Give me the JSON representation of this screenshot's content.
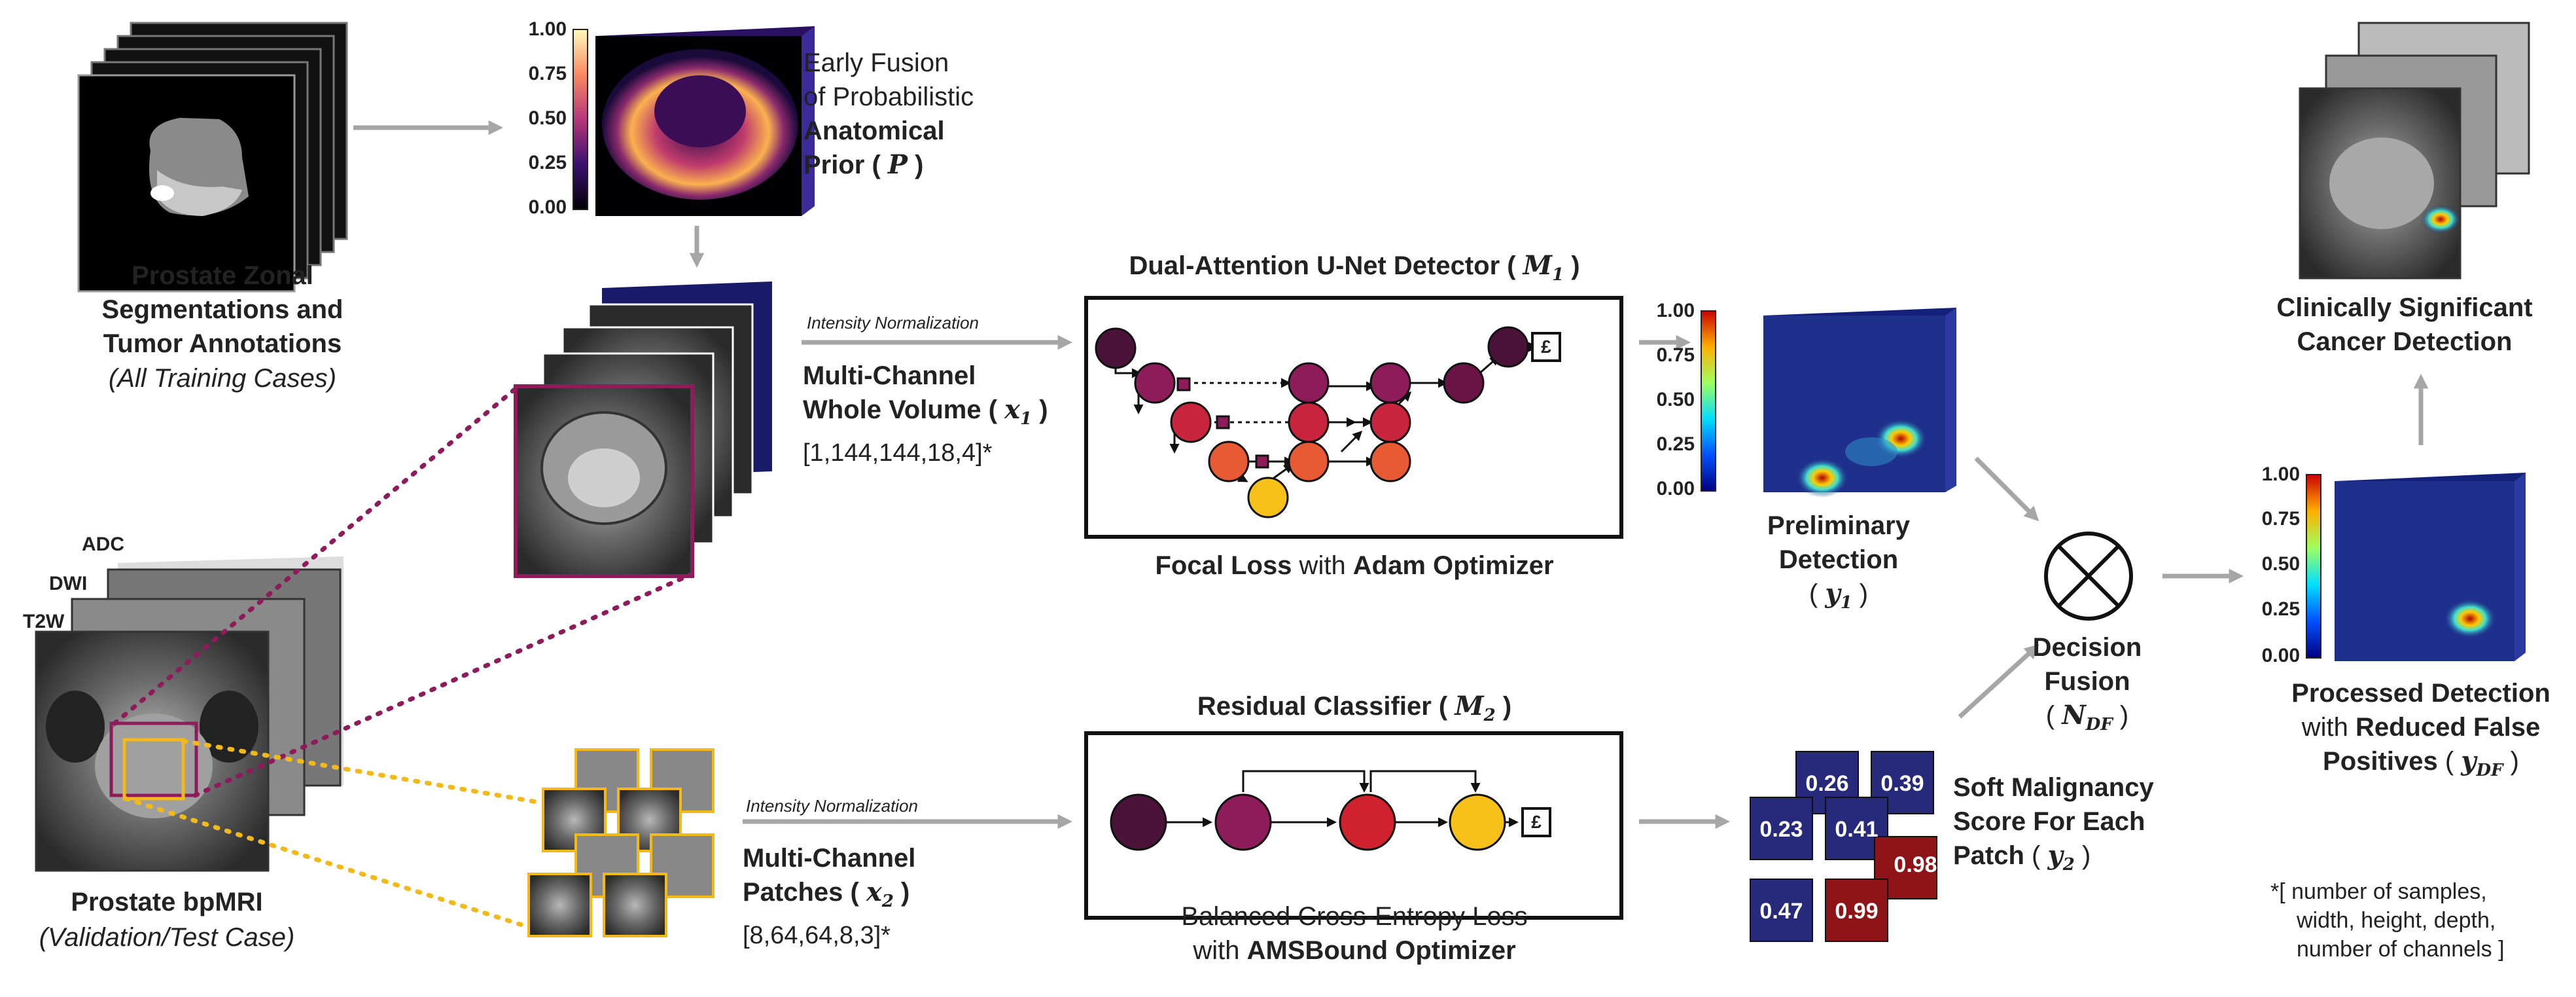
{
  "zonal": {
    "title_lines": [
      "Prostate Zonal",
      "Segmentations and",
      "Tumor Annotations"
    ],
    "subtitle": "(All Training Cases)"
  },
  "bpmri": {
    "title": "Prostate bpMRI",
    "subtitle": "(Validation/Test Case)",
    "sequence_labels": [
      "ADC",
      "DWI",
      "T2W"
    ]
  },
  "prior": {
    "colorbar_ticks": [
      "1.00",
      "0.75",
      "0.50",
      "0.25",
      "0.00"
    ],
    "line1": "Early Fusion",
    "line2": "of Probabilistic",
    "line3": "Anatomical",
    "line4": "Prior",
    "symbol": "P"
  },
  "whole_volume": {
    "normalization": "Intensity Normalization",
    "line1": "Multi-Channel",
    "line2": "Whole Volume",
    "symbol": "x",
    "sub": "1",
    "shape": "[1,144,144,18,4]*"
  },
  "patches": {
    "normalization": "Intensity Normalization",
    "line1": "Multi-Channel",
    "line2": "Patches",
    "symbol": "x",
    "sub": "2",
    "shape": "[8,64,64,8,3]*"
  },
  "detector": {
    "title": "Dual-Attention U-Net Detector",
    "symbol": "M",
    "sub": "1",
    "loss_word": "Focal Loss",
    "with": " with ",
    "optimizer": "Adam Optimizer",
    "loss_icon": "£"
  },
  "classifier": {
    "title": "Residual Classifier",
    "symbol": "M",
    "sub": "2",
    "loss_line1": "Balanced Cross-Entropy Loss",
    "with": "with ",
    "optimizer": "AMSBound Optimizer",
    "loss_icon": "£"
  },
  "preliminary": {
    "colorbar_ticks": [
      "1.00",
      "0.75",
      "0.50",
      "0.25",
      "0.00"
    ],
    "line1": "Preliminary",
    "line2": "Detection",
    "symbol": "y",
    "sub": "1"
  },
  "soft_scores": {
    "values": [
      "0.26",
      "0.39",
      "0.23",
      "0.41",
      "0.98",
      "0.47",
      "0.99"
    ],
    "line1": "Soft Malignancy",
    "line2": "Score For Each",
    "line3": "Patch",
    "symbol": "y",
    "sub": "2"
  },
  "fusion": {
    "line1": "Decision",
    "line2": "Fusion",
    "symbol": "N",
    "sub": "DF"
  },
  "processed": {
    "colorbar_ticks": [
      "1.00",
      "0.75",
      "0.50",
      "0.25",
      "0.00"
    ],
    "line1": "Processed Detection",
    "line2_a": "with ",
    "line2_b": "Reduced False",
    "line3": "Positives",
    "symbol": "y",
    "sub": "DF"
  },
  "csc": {
    "line1": "Clinically Significant",
    "line2": "Cancer Detection"
  },
  "footnote": {
    "line1": "*[  number of samples,",
    "line2": "width, height, depth,",
    "line3": "number of channels  ]"
  },
  "colors": {
    "arrow": "#a6a6a6",
    "magenta_dotted": "#8e1b5a",
    "yellow_dotted": "#f2b91a",
    "heatmap_bg": "#1e2f8c",
    "score_blue": "#272a7a",
    "score_red": "#8e1418"
  }
}
